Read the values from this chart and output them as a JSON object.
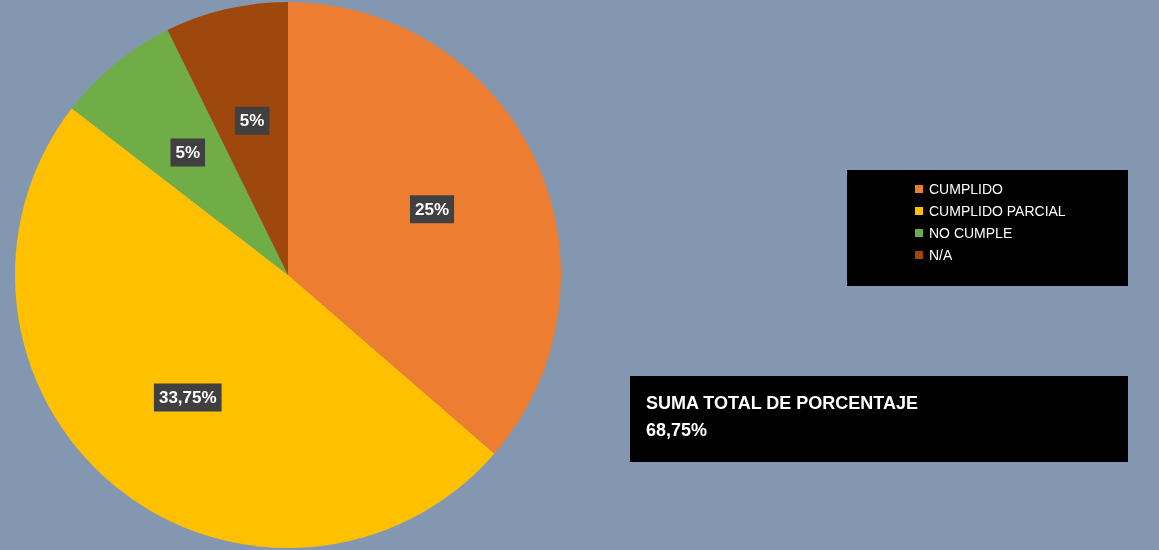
{
  "chart_data": {
    "type": "pie",
    "categories": [
      "CUMPLIDO",
      "CUMPLIDO PARCIAL",
      "NO CUMPLE",
      "N/A"
    ],
    "values": [
      25,
      33.75,
      5,
      5
    ],
    "colors": [
      "#ed7d31",
      "#ffc000",
      "#70ad47",
      "#9e480e"
    ],
    "value_labels": [
      "25%",
      "33,75%",
      "5%",
      "5%"
    ],
    "legend": "right",
    "annotations": [
      "SUMA TOTAL DE PORCENTAJE",
      "68,75%"
    ]
  }
}
